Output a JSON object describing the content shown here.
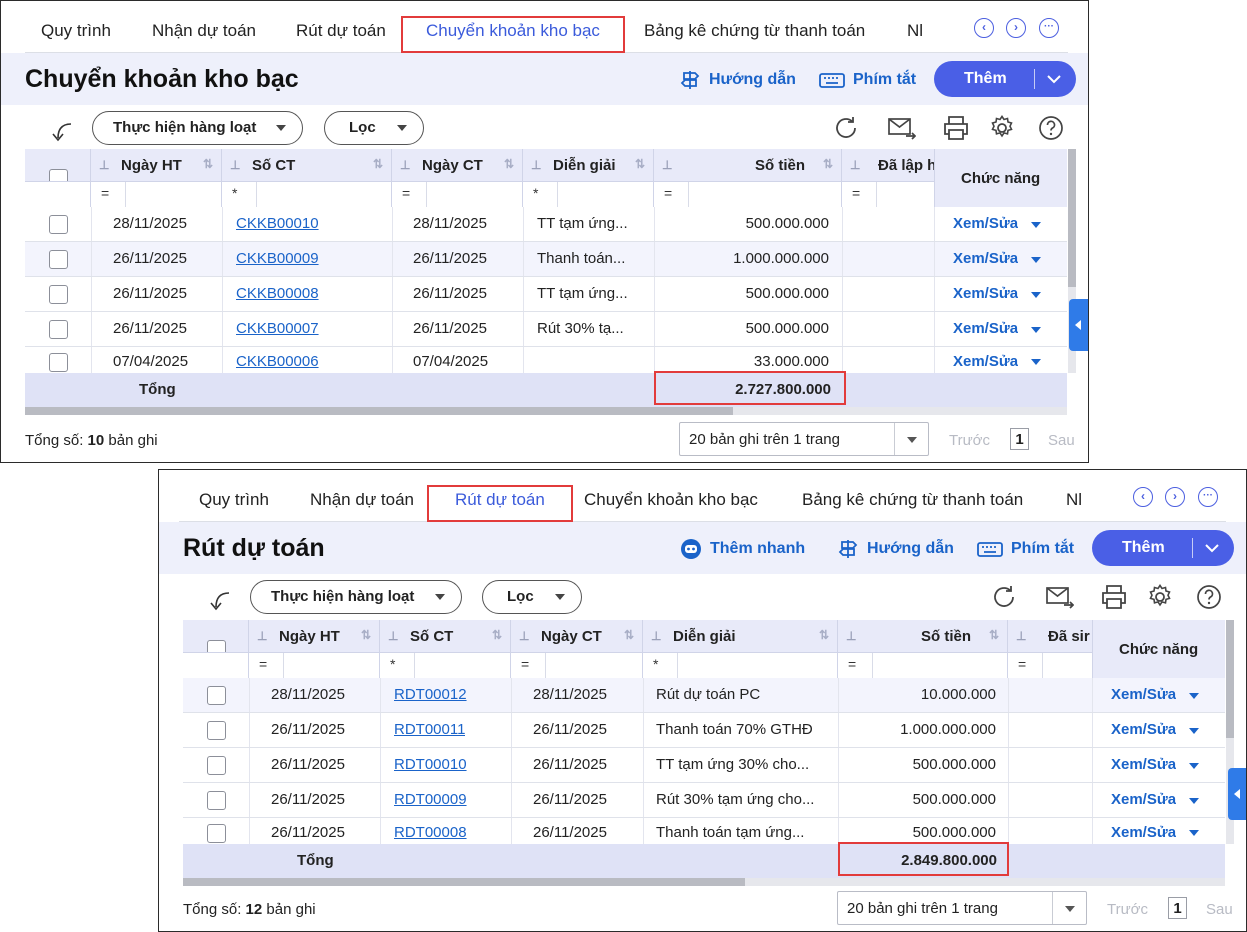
{
  "panel1": {
    "tabs": [
      "Quy trình",
      "Nhận dự toán",
      "Rút dự toán",
      "Chuyển khoản kho bạc",
      "Bảng kê chứng từ thanh toán",
      "Nl"
    ],
    "title": "Chuyển khoản kho bạc",
    "tools": [
      "Hướng dẫn",
      "Phím tắt"
    ],
    "add_label": "Thêm",
    "bulk_label": "Thực hiện hàng loạt",
    "filter_label": "Lọc",
    "columns": [
      "Ngày HT",
      "Số CT",
      "Ngày CT",
      "Diễn giải",
      "Số tiền",
      "Đã lập h",
      "Chức năng"
    ],
    "filter_ops": [
      "=",
      "*",
      "=",
      "*",
      "=",
      "="
    ],
    "rows": [
      {
        "ngay_ht": "28/11/2025",
        "so_ct": "CKKB00010",
        "ngay_ct": "28/11/2025",
        "dien_giai": "TT tạm ứng...",
        "so_tien": "500.000.000",
        "action": "Xem/Sửa"
      },
      {
        "ngay_ht": "26/11/2025",
        "so_ct": "CKKB00009",
        "ngay_ct": "26/11/2025",
        "dien_giai": "Thanh toán...",
        "so_tien": "1.000.000.000",
        "action": "Xem/Sửa"
      },
      {
        "ngay_ht": "26/11/2025",
        "so_ct": "CKKB00008",
        "ngay_ct": "26/11/2025",
        "dien_giai": "TT tạm ứng...",
        "so_tien": "500.000.000",
        "action": "Xem/Sửa"
      },
      {
        "ngay_ht": "26/11/2025",
        "so_ct": "CKKB00007",
        "ngay_ct": "26/11/2025",
        "dien_giai": "Rút 30% tạ...",
        "so_tien": "500.000.000",
        "action": "Xem/Sửa"
      },
      {
        "ngay_ht": "07/04/2025",
        "so_ct": "CKKB00006",
        "ngay_ct": "07/04/2025",
        "dien_giai": "",
        "so_tien": "33.000.000",
        "action": "Xem/Sửa"
      }
    ],
    "total_label": "Tổng",
    "total_value": "2.727.800.000",
    "count_prefix": "Tổng số: ",
    "count_value": "10",
    "count_suffix": " bản ghi",
    "pager": "20 bản ghi trên 1 trang",
    "prev": "Trước",
    "page": "1",
    "next": "Sau"
  },
  "panel2": {
    "tabs": [
      "Quy trình",
      "Nhận dự toán",
      "Rút dự toán",
      "Chuyển khoản kho bạc",
      "Bảng kê chứng từ thanh toán",
      "Nl"
    ],
    "title": "Rút dự toán",
    "tools": [
      "Thêm nhanh",
      "Hướng dẫn",
      "Phím tắt"
    ],
    "add_label": "Thêm",
    "bulk_label": "Thực hiện hàng loạt",
    "filter_label": "Lọc",
    "columns": [
      "Ngày HT",
      "Số CT",
      "Ngày CT",
      "Diễn giải",
      "Số tiền",
      "Đã sir",
      "Chức năng"
    ],
    "filter_ops": [
      "=",
      "*",
      "=",
      "*",
      "=",
      "="
    ],
    "rows": [
      {
        "ngay_ht": "28/11/2025",
        "so_ct": "RDT00012",
        "ngay_ct": "28/11/2025",
        "dien_giai": "Rút dự toán PC",
        "so_tien": "10.000.000",
        "action": "Xem/Sửa"
      },
      {
        "ngay_ht": "26/11/2025",
        "so_ct": "RDT00011",
        "ngay_ct": "26/11/2025",
        "dien_giai": "Thanh toán 70% GTHĐ",
        "so_tien": "1.000.000.000",
        "action": "Xem/Sửa"
      },
      {
        "ngay_ht": "26/11/2025",
        "so_ct": "RDT00010",
        "ngay_ct": "26/11/2025",
        "dien_giai": "TT tạm ứng 30% cho...",
        "so_tien": "500.000.000",
        "action": "Xem/Sửa"
      },
      {
        "ngay_ht": "26/11/2025",
        "so_ct": "RDT00009",
        "ngay_ct": "26/11/2025",
        "dien_giai": "Rút 30% tạm ứng cho...",
        "so_tien": "500.000.000",
        "action": "Xem/Sửa"
      },
      {
        "ngay_ht": "26/11/2025",
        "so_ct": "RDT00008",
        "ngay_ct": "26/11/2025",
        "dien_giai": "Thanh toán tạm ứng...",
        "so_tien": "500.000.000",
        "action": "Xem/Sửa"
      }
    ],
    "total_label": "Tổng",
    "total_value": "2.849.800.000",
    "count_prefix": "Tổng số: ",
    "count_value": "12",
    "count_suffix": " bản ghi",
    "pager": "20 bản ghi trên 1 trang",
    "prev": "Trước",
    "page": "1",
    "next": "Sau"
  },
  "colors": {
    "accent": "#4a5fe6",
    "link": "#1a63c9",
    "highlight": "#e23b3b",
    "header_bg": "#e8eaf9"
  }
}
